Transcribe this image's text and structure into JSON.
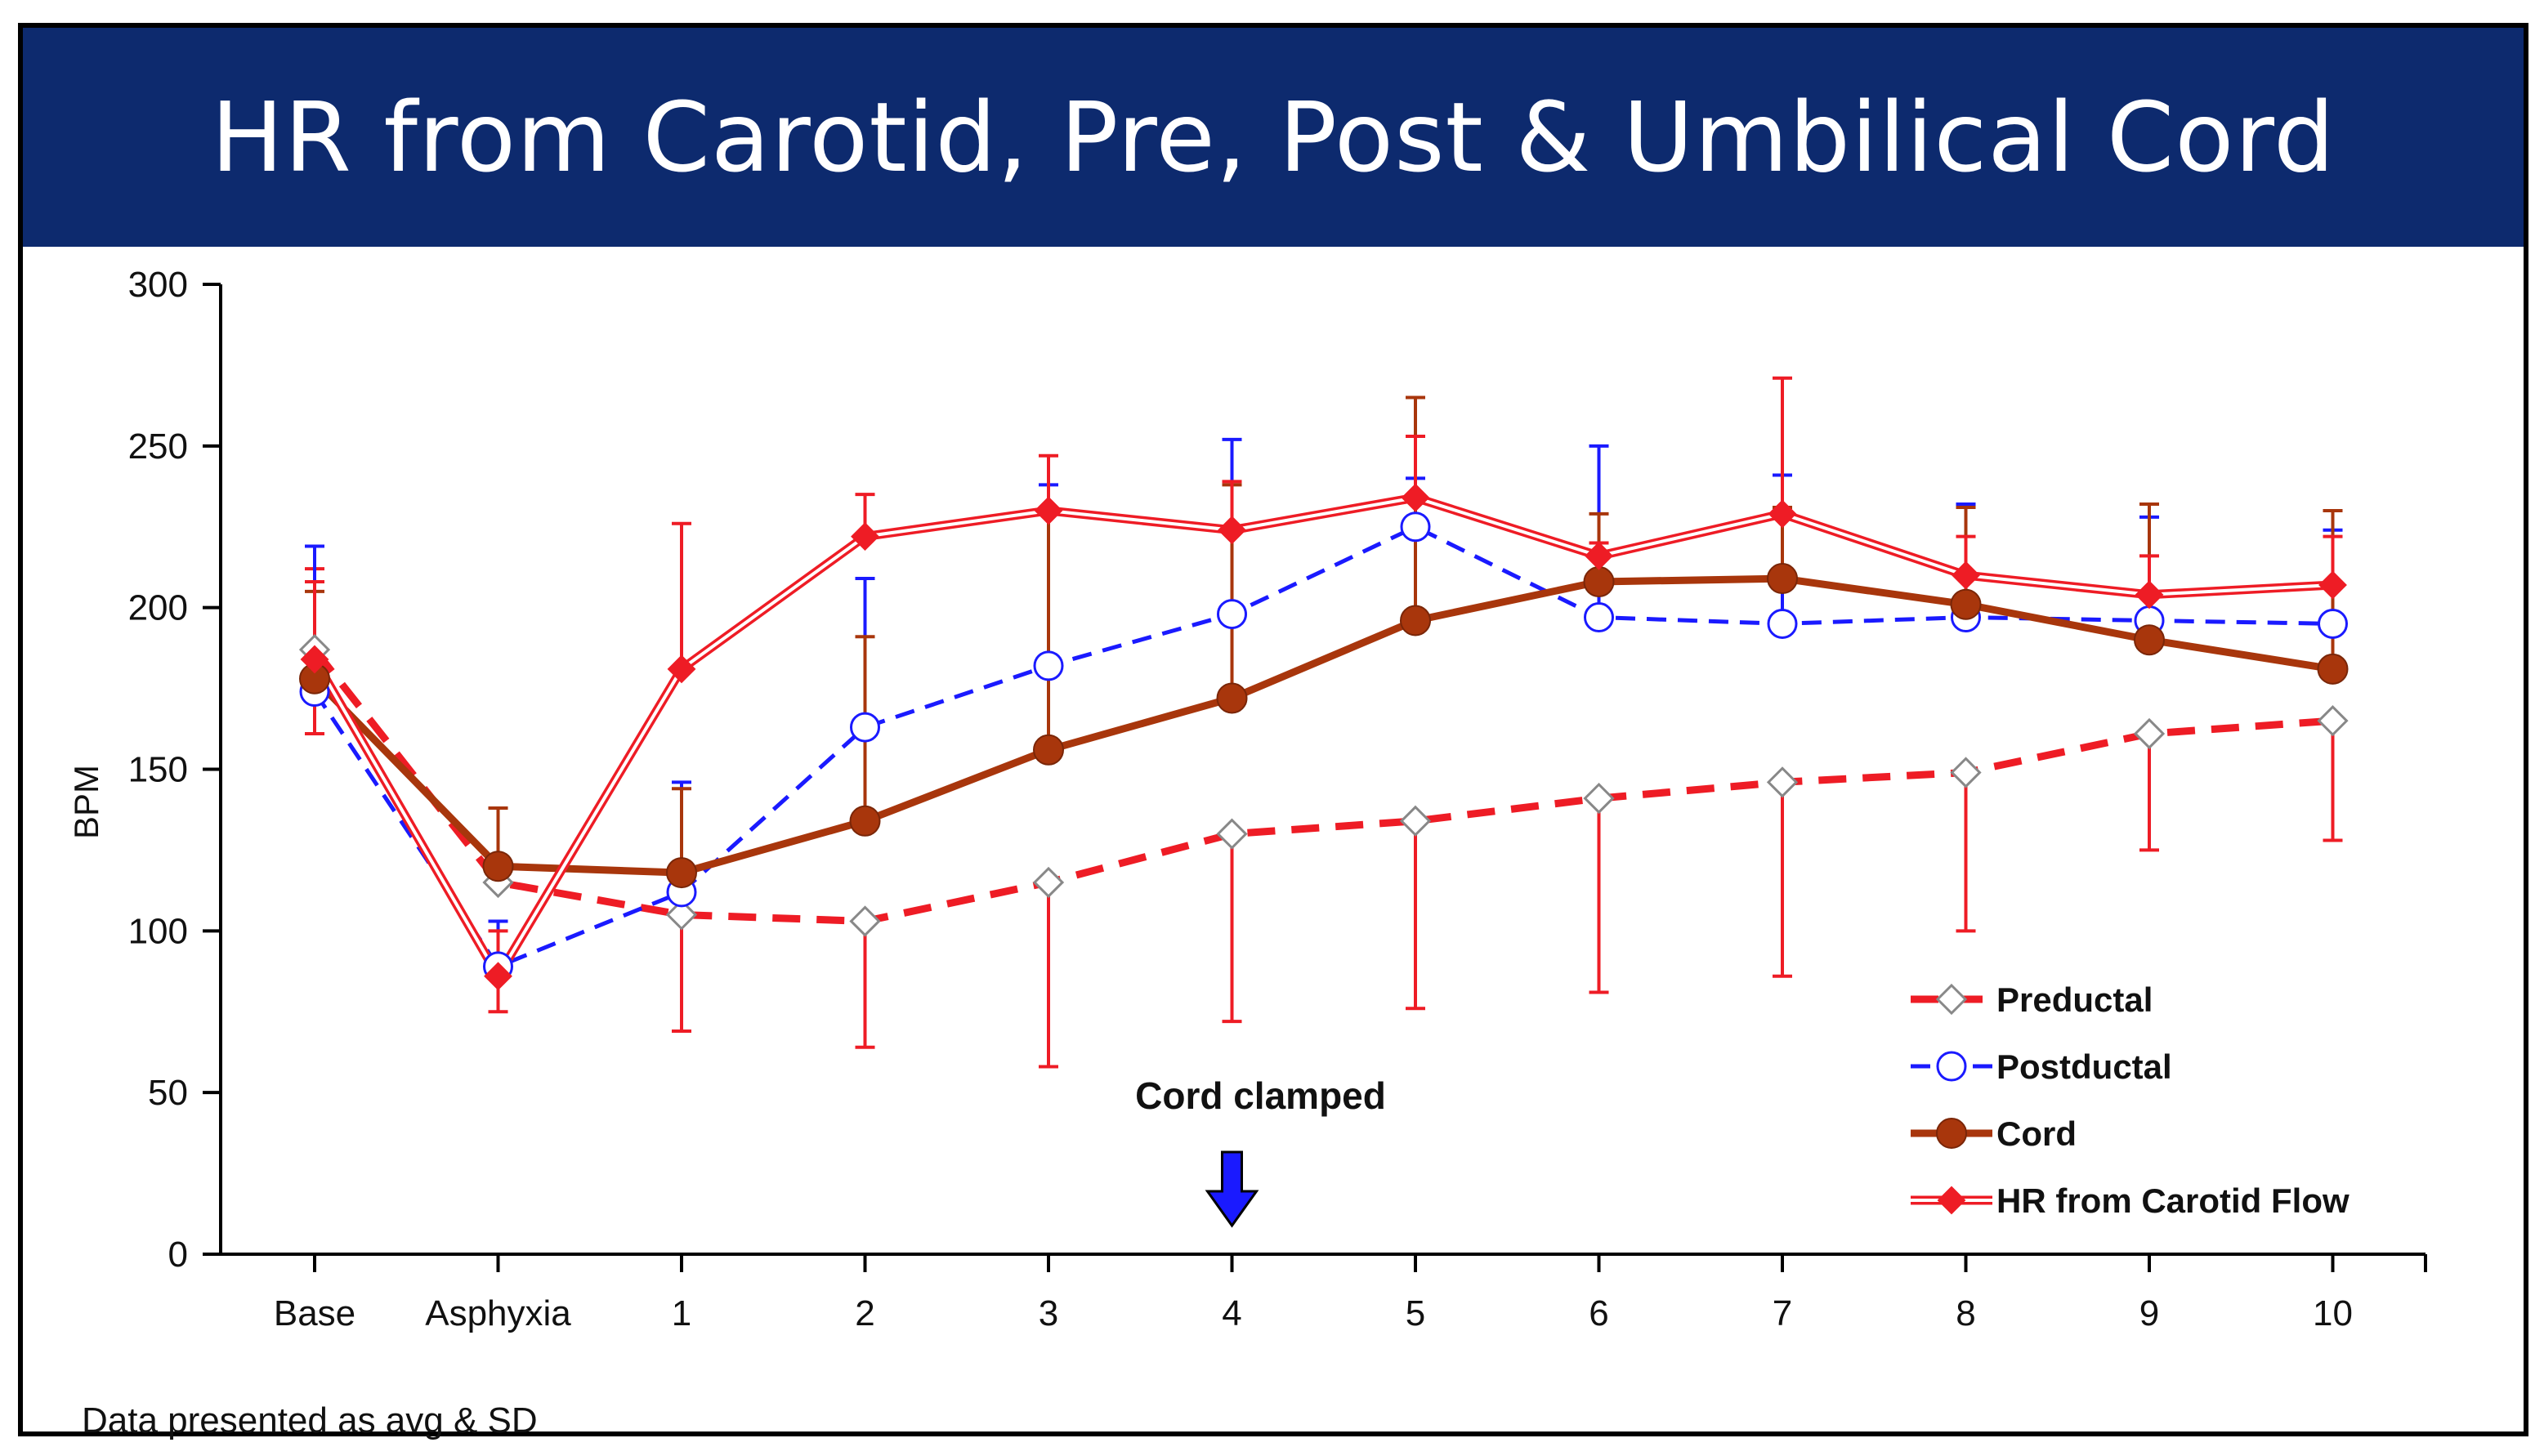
{
  "chart_data": {
    "type": "line",
    "title": "HR from Carotid, Pre, Post & Umbilical Cord",
    "ylabel": "BPM",
    "xlabel": "",
    "ylim": [
      0,
      300
    ],
    "yticks": [
      0,
      50,
      100,
      150,
      200,
      250,
      300
    ],
    "categories": [
      "Base",
      "Asphyxia",
      "1",
      "2",
      "3",
      "4",
      "5",
      "6",
      "7",
      "8",
      "9",
      "10"
    ],
    "footnote": "Data presented as avg & SD",
    "annotation": {
      "label": "Cord clamped",
      "category": "4",
      "arrow_color": "#1a1aff"
    },
    "legend_position": "bottom-right",
    "series": [
      {
        "name": "Preductal",
        "style": "dashed",
        "marker": "diamond-open",
        "color": "#ee1c25",
        "values": [
          187,
          115,
          105,
          103,
          115,
          130,
          134,
          141,
          146,
          149,
          161,
          165
        ],
        "sd_low": [
          161,
          null,
          69,
          64,
          58,
          72,
          76,
          81,
          86,
          100,
          125,
          128
        ],
        "sd_high": [
          212,
          null,
          null,
          null,
          null,
          null,
          null,
          null,
          null,
          null,
          null,
          null
        ]
      },
      {
        "name": "Postductal",
        "style": "dashed",
        "marker": "circle-open",
        "color": "#1a1aff",
        "values": [
          174,
          89,
          112,
          163,
          182,
          198,
          225,
          197,
          195,
          197,
          196,
          195
        ],
        "sd_low": [
          null,
          null,
          null,
          null,
          null,
          null,
          null,
          null,
          null,
          null,
          null,
          null
        ],
        "sd_high": [
          219,
          103,
          146,
          209,
          238,
          252,
          240,
          250,
          241,
          232,
          228,
          224
        ]
      },
      {
        "name": "Cord",
        "style": "solid",
        "marker": "circle-filled",
        "color": "#a8360c",
        "values": [
          178,
          120,
          118,
          134,
          156,
          172,
          196,
          208,
          209,
          201,
          190,
          181
        ],
        "sd_low": [
          null,
          null,
          null,
          null,
          null,
          null,
          null,
          null,
          null,
          null,
          null,
          null
        ],
        "sd_high": [
          205,
          138,
          144,
          191,
          230,
          238,
          265,
          229,
          231,
          231,
          232,
          230
        ]
      },
      {
        "name": "HR from Carotid Flow",
        "style": "double",
        "marker": "diamond-filled",
        "color": "#ee1c25",
        "values": [
          184,
          86,
          181,
          222,
          230,
          224,
          234,
          216,
          229,
          210,
          204,
          207
        ],
        "sd_low": [
          null,
          75,
          null,
          null,
          null,
          null,
          null,
          null,
          null,
          null,
          null,
          null
        ],
        "sd_high": [
          208,
          100,
          226,
          235,
          247,
          239,
          253,
          220,
          271,
          222,
          216,
          222
        ]
      }
    ]
  }
}
